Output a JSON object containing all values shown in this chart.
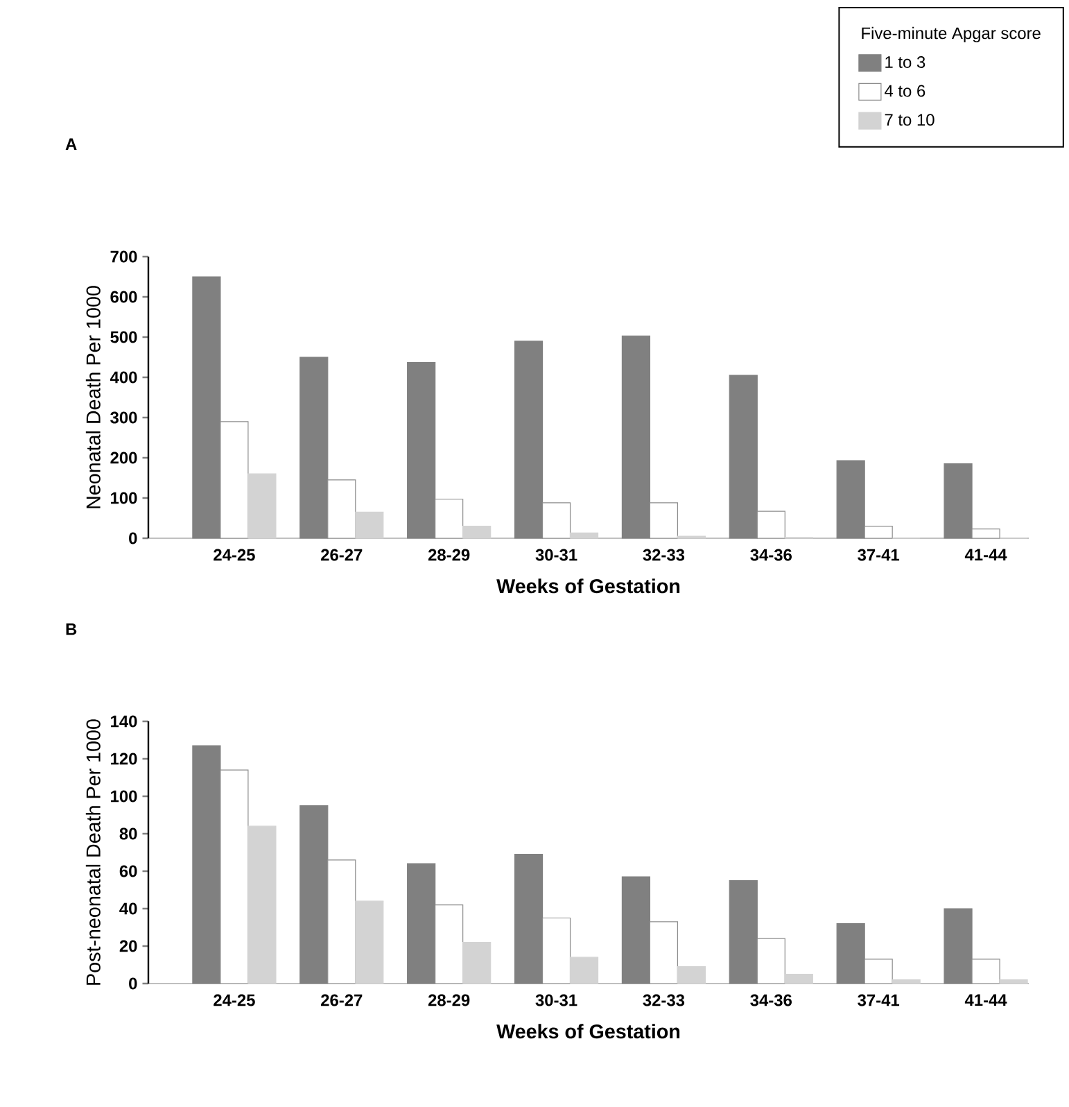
{
  "chart_data": [
    {
      "type": "bar",
      "title": "A",
      "xlabel": "Weeks of Gestation",
      "ylabel": "Neonatal Death Per 1000",
      "categories": [
        "24-25",
        "26-27",
        "28-29",
        "30-31",
        "32-33",
        "34-36",
        "37-41",
        "41-44"
      ],
      "series": [
        {
          "name": "1 to 3",
          "color": "#808080",
          "values": [
            650,
            450,
            437,
            490,
            503,
            405,
            193,
            185
          ]
        },
        {
          "name": "4 to 6",
          "color": "#ffffff",
          "values": [
            290,
            145,
            97,
            88,
            88,
            67,
            30,
            23
          ]
        },
        {
          "name": "7 to 10",
          "color": "#d3d3d3",
          "values": [
            160,
            65,
            30,
            13,
            5,
            2,
            0,
            0
          ]
        }
      ],
      "ylim": [
        0,
        700
      ],
      "yticks": [
        0,
        100,
        200,
        300,
        400,
        500,
        600,
        700
      ],
      "legend": "top right",
      "legend_title": "Five-minute Apgar score"
    },
    {
      "type": "bar",
      "title": "B",
      "xlabel": "Weeks of Gestation",
      "ylabel": "Post-neonatal Death Per 1000",
      "categories": [
        "24-25",
        "26-27",
        "28-29",
        "30-31",
        "32-33",
        "34-36",
        "37-41",
        "41-44"
      ],
      "series": [
        {
          "color": "#808080",
          "values": [
            127,
            95,
            64,
            69,
            57,
            55,
            32,
            40
          ]
        },
        {
          "color": "#ffffff",
          "values": [
            114,
            66,
            42,
            35,
            33,
            24,
            13,
            13
          ]
        },
        {
          "color": "#d3d3d3",
          "values": [
            84,
            44,
            22,
            14,
            9,
            5,
            2,
            2
          ]
        }
      ],
      "ylim": [
        0,
        140
      ],
      "yticks": [
        0,
        20,
        40,
        60,
        80,
        100,
        120,
        140
      ]
    }
  ]
}
